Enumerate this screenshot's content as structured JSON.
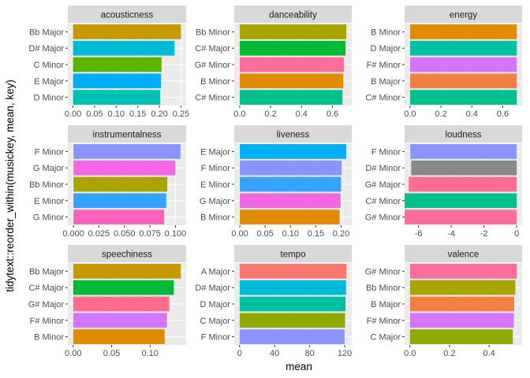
{
  "chart_data": {
    "type": "bar",
    "orientation": "horizontal",
    "layout": "facet_wrap 3x3, free scales",
    "xlabel": "mean",
    "ylabel": "tidytext::reorder_within(musickey, mean, key)",
    "grid": true,
    "legend": "none",
    "key_colors": {
      "A Major": "#F8766D",
      "B Major": "#F07F42",
      "B Minor": "#E08B00",
      "Bb Major": "#C49A00",
      "Bb Minor": "#AAA400",
      "C Major": "#8FAA00",
      "C Minor": "#5BB300",
      "C# Major": "#00BA38",
      "C# Minor": "#00C08B",
      "D Major": "#00C19F",
      "D Minor": "#00BFB5",
      "D# Major": "#00BBD6",
      "E Major": "#00B0F6",
      "E Minor": "#35A2FF",
      "F Minor": "#8A94FF",
      "F# Major": "#C77CFF",
      "F# Minor": "#D575FE",
      "G Major": "#F267E3",
      "G Minor": "#FF62BC",
      "G# Major": "#FF6C91",
      "G# Minor": "#FF6D9C"
    },
    "panels": [
      {
        "strip": "acousticness",
        "xlim": [
          -0.012,
          0.262
        ],
        "xticks": [
          0.0,
          0.05,
          0.1,
          0.15,
          0.2,
          0.25
        ],
        "xtick_labels": [
          "0.00",
          "0.05",
          "0.10",
          "0.15",
          "0.20",
          "0.25"
        ],
        "categories": [
          "Bb Major",
          "D# Major",
          "C Minor",
          "E Major",
          "D Minor"
        ],
        "values": [
          0.25,
          0.235,
          0.205,
          0.204,
          0.202
        ]
      },
      {
        "strip": "danceability",
        "xlim": [
          -0.035,
          0.725
        ],
        "xticks": [
          0.0,
          0.2,
          0.4,
          0.6
        ],
        "xtick_labels": [
          "0.0",
          "0.2",
          "0.4",
          "0.6"
        ],
        "categories": [
          "Bb Minor",
          "C# Major",
          "G# Minor",
          "B Minor",
          "C# Minor"
        ],
        "values": [
          0.69,
          0.685,
          0.675,
          0.67,
          0.665
        ]
      },
      {
        "strip": "energy",
        "xlim": [
          -0.035,
          0.725
        ],
        "xticks": [
          0.0,
          0.2,
          0.4,
          0.6
        ],
        "xtick_labels": [
          "0.0",
          "0.2",
          "0.4",
          "0.6"
        ],
        "categories": [
          "B Minor",
          "D Major",
          "F# Minor",
          "B Major",
          "C# Minor"
        ],
        "values": [
          0.69,
          0.69,
          0.69,
          0.69,
          0.69
        ]
      },
      {
        "strip": "instrumentalness",
        "xlim": [
          -0.0055,
          0.1105
        ],
        "xticks": [
          0.0,
          0.025,
          0.05,
          0.075,
          0.1
        ],
        "xtick_labels": [
          "0.000",
          "0.025",
          "0.050",
          "0.075",
          "0.100"
        ],
        "categories": [
          "F Minor",
          "G Major",
          "Bb Minor",
          "E Minor",
          "G Minor"
        ],
        "values": [
          0.105,
          0.1,
          0.092,
          0.091,
          0.089
        ]
      },
      {
        "strip": "liveness",
        "xlim": [
          -0.011,
          0.221
        ],
        "xticks": [
          0.0,
          0.05,
          0.1,
          0.15,
          0.2
        ],
        "xtick_labels": [
          "0.00",
          "0.05",
          "0.10",
          "0.15",
          "0.20"
        ],
        "categories": [
          "E Major",
          "F Minor",
          "E Minor",
          "G Major",
          "B Minor"
        ],
        "values": [
          0.21,
          0.201,
          0.2,
          0.199,
          0.197
        ]
      },
      {
        "strip": "loudness",
        "xlim": [
          -6.85,
          0.33
        ],
        "xticks": [
          -6,
          -4,
          -2,
          0
        ],
        "xtick_labels": [
          "-6",
          "-4",
          "-2",
          "0"
        ],
        "categories": [
          "F Minor",
          "D# Minor",
          "G# Major",
          "C# Minor",
          "G# Minor"
        ],
        "values": [
          -6.5,
          -6.45,
          -6.6,
          -6.85,
          -6.85
        ]
      },
      {
        "strip": "speechiness",
        "xlim": [
          -0.007,
          0.147
        ],
        "xticks": [
          0.0,
          0.05,
          0.1
        ],
        "xtick_labels": [
          "0.00",
          "0.05",
          "0.10"
        ],
        "categories": [
          "Bb Major",
          "C# Major",
          "G# Major",
          "F# Minor",
          "B Minor"
        ],
        "values": [
          0.14,
          0.131,
          0.125,
          0.122,
          0.119
        ]
      },
      {
        "strip": "tempo",
        "xlim": [
          -6.1,
          128.1
        ],
        "xticks": [
          0,
          40,
          80,
          120
        ],
        "xtick_labels": [
          "0",
          "40",
          "80",
          "120"
        ],
        "categories": [
          "A Major",
          "D# Major",
          "D Major",
          "C Major",
          "F Minor"
        ],
        "values": [
          122.0,
          121.5,
          121.0,
          120.5,
          120.0
        ]
      },
      {
        "strip": "valence",
        "xlim": [
          -0.027,
          0.567
        ],
        "xticks": [
          0.0,
          0.2,
          0.4
        ],
        "xtick_labels": [
          "0.0",
          "0.2",
          "0.4"
        ],
        "categories": [
          "G# Minor",
          "Bb Minor",
          "B Major",
          "F# Minor",
          "C Major"
        ],
        "values": [
          0.54,
          0.533,
          0.527,
          0.525,
          0.52
        ]
      }
    ]
  }
}
